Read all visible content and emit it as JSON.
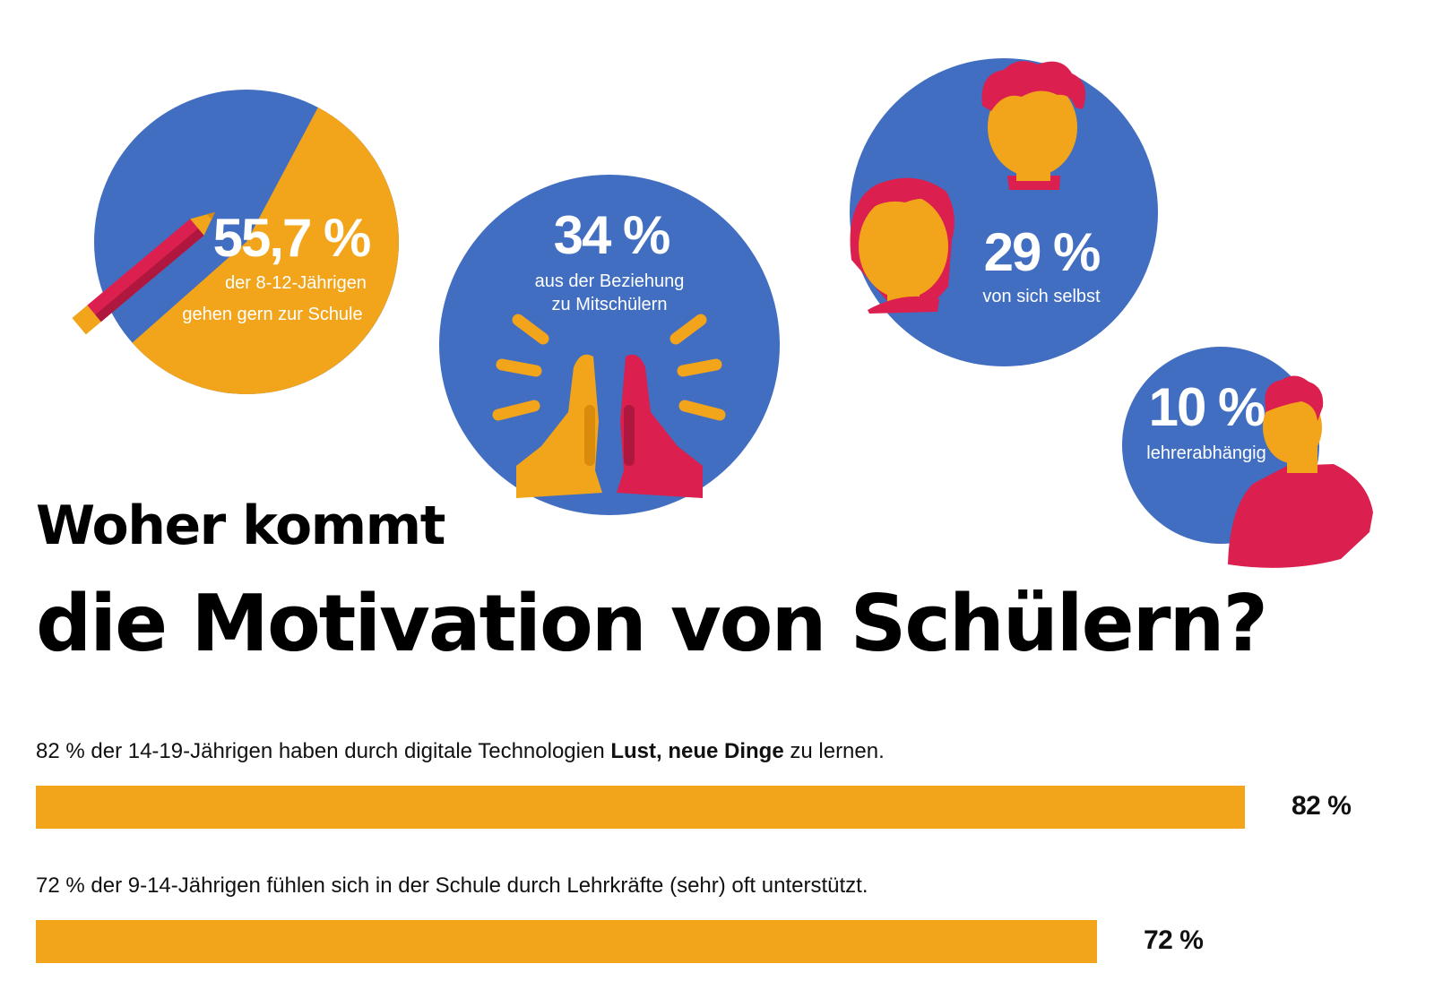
{
  "colors": {
    "blue": "#416ec1",
    "orange": "#f2a41b",
    "red": "#db1f4e",
    "skin": "#f2a41b",
    "text_dark": "#111111"
  },
  "title": {
    "line1": "Woher kommt",
    "line2": "die Motivation von Schülern?"
  },
  "icons": [
    "pencil-icon",
    "high-five-icon",
    "boy-head-icon",
    "girl-head-icon",
    "teacher-icon"
  ],
  "chart_data": [
    {
      "type": "pie",
      "slices": [
        {
          "label": "gehen gern zur Schule",
          "value": 55.7
        },
        {
          "label": "",
          "value": 44.3
        }
      ],
      "value_text": "55,7 %",
      "label_line1": "der 8-12-Jährigen",
      "label_line2": "gehen gern zur Schule"
    },
    {
      "type": "bubble",
      "items": [
        {
          "id": "mitschueler",
          "value": 34,
          "value_text": "34 %",
          "line1": "aus der Beziehung",
          "line2": "zu Mitschülern"
        },
        {
          "id": "selbst",
          "value": 29,
          "value_text": "29 %",
          "line1": "von sich selbst",
          "line2": ""
        },
        {
          "id": "lehrer",
          "value": 10,
          "value_text": "10 %",
          "line1": "lehrerabhängig",
          "line2": ""
        }
      ]
    },
    {
      "type": "bar",
      "orientation": "horizontal",
      "xlim": [
        0,
        100
      ],
      "bars": [
        {
          "value": 82,
          "value_text": "82 %",
          "caption_pre": "82 % der 14-19-Jährigen haben durch digitale Technologien ",
          "caption_bold": "Lust, neue Dinge",
          "caption_post": " zu lernen."
        },
        {
          "value": 72,
          "value_text": "72 %",
          "caption_pre": "72 % der 9-14-Jährigen fühlen sich in der Schule durch Lehrkräfte (sehr) oft unterstützt.",
          "caption_bold": "",
          "caption_post": ""
        }
      ]
    }
  ]
}
